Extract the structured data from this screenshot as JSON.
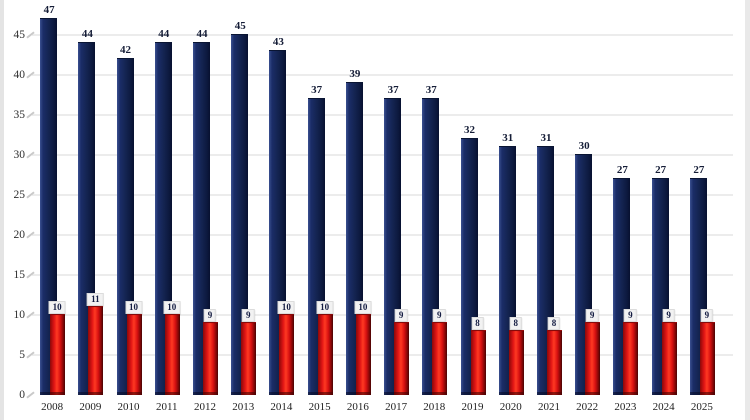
{
  "chart_data": {
    "type": "bar",
    "title": "",
    "xlabel": "",
    "ylabel": "",
    "categories": [
      "2008",
      "2009",
      "2010",
      "2011",
      "2012",
      "2013",
      "2014",
      "2015",
      "2016",
      "2017",
      "2018",
      "2019",
      "2020",
      "2021",
      "2022",
      "2023",
      "2024",
      "2025"
    ],
    "series": [
      {
        "name": "primary-navy-series",
        "color": "#13234f",
        "label_style": "plain-bold",
        "values": [
          47,
          44,
          42,
          44,
          44,
          45,
          43,
          37,
          39,
          37,
          37,
          32,
          31,
          31,
          30,
          27,
          27,
          27
        ]
      },
      {
        "name": "secondary-red-series",
        "color": "#e01515",
        "label_style": "boxed",
        "values": [
          10,
          11,
          10,
          10,
          9,
          9,
          10,
          10,
          10,
          9,
          9,
          8,
          8,
          8,
          9,
          9,
          9,
          9
        ]
      }
    ],
    "yticks": [
      0,
      5,
      10,
      15,
      20,
      25,
      30,
      35,
      40,
      45
    ],
    "ylim": [
      0,
      48
    ],
    "grid": true,
    "legend": "none",
    "bar_style": "overlapped-3d",
    "data_labels": true
  },
  "colors": {
    "background": "#ffffff",
    "gridline": "#ececec",
    "axis_text": "#2e2e2e",
    "primary_bar": "#13234f",
    "secondary_bar": "#e01515",
    "secondary_label_box": "#f2f2f2"
  }
}
